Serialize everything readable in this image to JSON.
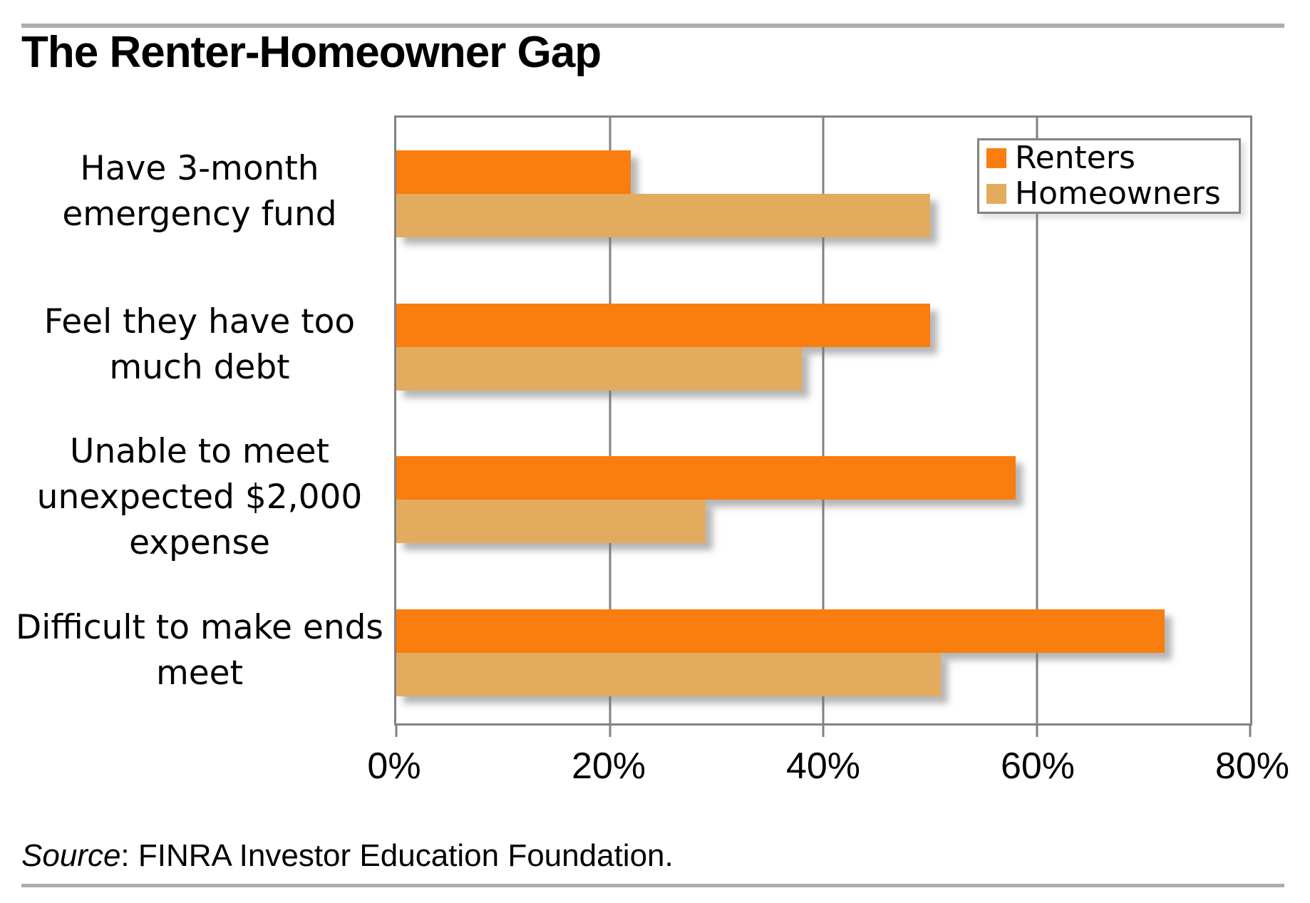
{
  "title": "The Renter-Homeowner Gap",
  "source": {
    "label_italic": "Source",
    "text": ": FINRA Investor Education Foundation."
  },
  "colors": {
    "renters": "#fa7d0f",
    "homeowners": "#e3ab5e",
    "axis_gray": "#828282",
    "rule_gray": "#abaeb1"
  },
  "chart_data": {
    "type": "bar",
    "orientation": "horizontal",
    "title": "The Renter-Homeowner Gap",
    "categories": [
      "Have 3-month emergency fund",
      "Feel they have too much debt",
      "Unable to meet unexpected $2,000 expense",
      "Difficult to make ends meet"
    ],
    "series": [
      {
        "name": "Renters",
        "color": "#fa7d0f",
        "values": [
          22,
          50,
          58,
          72
        ]
      },
      {
        "name": "Homeowners",
        "color": "#e3ab5e",
        "values": [
          50,
          38,
          29,
          51
        ]
      }
    ],
    "x_ticks": [
      "0%",
      "20%",
      "40%",
      "60%",
      "80%"
    ],
    "xlim": [
      0,
      80
    ],
    "grid": true,
    "legend_position": "top-right",
    "xlabel": "",
    "ylabel": ""
  }
}
